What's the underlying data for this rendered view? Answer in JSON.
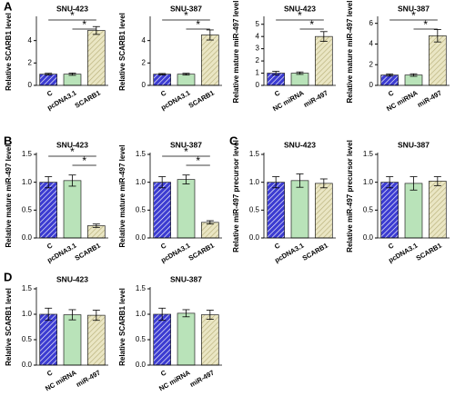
{
  "panel_labels": [
    "A",
    "B",
    "C",
    "D"
  ],
  "chart_data": [
    {
      "type": "bar",
      "title": "SNU-423",
      "y_label": "Relative SCARB1 level",
      "categories": [
        "C",
        "pcDNA3.1",
        "SCARB1"
      ],
      "values": [
        1.0,
        1.0,
        4.9
      ],
      "errors": [
        0.08,
        0.1,
        0.35
      ],
      "colors": [
        "#3b3bd1",
        "#b9e3b9",
        "#eae6c4"
      ],
      "ylim": [
        0,
        6
      ],
      "yticks": [
        0,
        2,
        4
      ],
      "significance": [
        {
          "from": 0,
          "to": 2,
          "label": "*"
        },
        {
          "from": 1,
          "to": 2,
          "label": "*"
        }
      ]
    },
    {
      "type": "bar",
      "title": "SNU-387",
      "y_label": "Relative SCARB1 level",
      "categories": [
        "C",
        "pcDNA3.1",
        "SCARB1"
      ],
      "values": [
        1.0,
        1.0,
        4.5
      ],
      "errors": [
        0.06,
        0.08,
        0.45
      ],
      "colors": [
        "#3b3bd1",
        "#b9e3b9",
        "#eae6c4"
      ],
      "ylim": [
        0,
        6
      ],
      "yticks": [
        0,
        2,
        4
      ],
      "significance": [
        {
          "from": 0,
          "to": 2,
          "label": "*"
        },
        {
          "from": 1,
          "to": 2,
          "label": "*"
        }
      ]
    },
    {
      "type": "bar",
      "title": "SNU-423",
      "y_label": "Relative mature miR-497 level",
      "categories": [
        "C",
        "NC miRNA",
        "miR-497"
      ],
      "values": [
        1.0,
        1.0,
        4.0
      ],
      "errors": [
        0.15,
        0.1,
        0.4
      ],
      "colors": [
        "#3b3bd1",
        "#b9e3b9",
        "#eae6c4"
      ],
      "ylim": [
        0,
        5.5
      ],
      "yticks": [
        0,
        1,
        2,
        3,
        4,
        5
      ],
      "significance": [
        {
          "from": 0,
          "to": 2,
          "label": "*"
        },
        {
          "from": 1,
          "to": 2,
          "label": "*"
        }
      ]
    },
    {
      "type": "bar",
      "title": "SNU-387",
      "y_label": "Relative mature miR-497 level",
      "categories": [
        "C",
        "NC miRNA",
        "miR-497"
      ],
      "values": [
        1.0,
        1.0,
        4.8
      ],
      "errors": [
        0.1,
        0.12,
        0.6
      ],
      "colors": [
        "#3b3bd1",
        "#b9e3b9",
        "#eae6c4"
      ],
      "ylim": [
        0,
        6.5
      ],
      "yticks": [
        0,
        2,
        4,
        6
      ],
      "significance": [
        {
          "from": 0,
          "to": 2,
          "label": "*"
        },
        {
          "from": 1,
          "to": 2,
          "label": "*"
        }
      ]
    },
    {
      "type": "bar",
      "title": "SNU-423",
      "y_label": "Relative mature miR-497 level",
      "categories": [
        "C",
        "pcDNA3.1",
        "SCARB1"
      ],
      "values": [
        1.0,
        1.03,
        0.22
      ],
      "errors": [
        0.1,
        0.1,
        0.03
      ],
      "colors": [
        "#3b3bd1",
        "#b9e3b9",
        "#eae6c4"
      ],
      "ylim": [
        0,
        1.5
      ],
      "yticks": [
        {
          "value": 0,
          "label": "0.0"
        },
        0.5,
        {
          "value": 1,
          "label": "1.0"
        },
        1.5
      ],
      "significance": [
        {
          "from": 0,
          "to": 2,
          "label": "*"
        },
        {
          "from": 1,
          "to": 2,
          "label": "*"
        }
      ]
    },
    {
      "type": "bar",
      "title": "SNU-387",
      "y_label": "Relative mature miR-497 level",
      "categories": [
        "C",
        "pcDNA3.1",
        "SCARB1"
      ],
      "values": [
        1.0,
        1.05,
        0.28
      ],
      "errors": [
        0.1,
        0.08,
        0.03
      ],
      "colors": [
        "#3b3bd1",
        "#b9e3b9",
        "#eae6c4"
      ],
      "ylim": [
        0,
        1.5
      ],
      "yticks": [
        {
          "value": 0,
          "label": "0.0"
        },
        0.5,
        {
          "value": 1,
          "label": "1.0"
        },
        1.5
      ],
      "significance": [
        {
          "from": 0,
          "to": 2,
          "label": "*"
        },
        {
          "from": 1,
          "to": 2,
          "label": "*"
        }
      ]
    },
    {
      "type": "bar",
      "title": "SNU-423",
      "y_label": "Relative miR-497 precursor level",
      "categories": [
        "C",
        "pcDNA3.1",
        "SCARB1"
      ],
      "values": [
        1.0,
        1.03,
        0.98
      ],
      "errors": [
        0.1,
        0.12,
        0.08
      ],
      "colors": [
        "#3b3bd1",
        "#b9e3b9",
        "#eae6c4"
      ],
      "ylim": [
        0,
        1.5
      ],
      "yticks": [
        {
          "value": 0,
          "label": "0.0"
        },
        0.5,
        {
          "value": 1,
          "label": "1.0"
        },
        1.5
      ],
      "significance": []
    },
    {
      "type": "bar",
      "title": "SNU-387",
      "y_label": "Relative miR-497 precursor level",
      "categories": [
        "C",
        "pcDNA3.1",
        "SCARB1"
      ],
      "values": [
        1.0,
        0.98,
        1.02
      ],
      "errors": [
        0.1,
        0.12,
        0.08
      ],
      "colors": [
        "#3b3bd1",
        "#b9e3b9",
        "#eae6c4"
      ],
      "ylim": [
        0,
        1.5
      ],
      "yticks": [
        {
          "value": 0,
          "label": "0.0"
        },
        0.5,
        {
          "value": 1,
          "label": "1.0"
        },
        1.5
      ],
      "significance": []
    },
    {
      "type": "bar",
      "title": "SNU-423",
      "y_label": "Relative SCARB1 level",
      "categories": [
        "C",
        "NC miRNA",
        "miR-497"
      ],
      "values": [
        1.0,
        0.99,
        0.98
      ],
      "errors": [
        0.12,
        0.1,
        0.1
      ],
      "colors": [
        "#3b3bd1",
        "#b9e3b9",
        "#eae6c4"
      ],
      "ylim": [
        0,
        1.5
      ],
      "yticks": [
        {
          "value": 0,
          "label": "0.0"
        },
        0.5,
        {
          "value": 1,
          "label": "1.0"
        },
        1.5
      ],
      "significance": []
    },
    {
      "type": "bar",
      "title": "SNU-387",
      "y_label": "Relative SCARB1 level",
      "categories": [
        "C",
        "NC miRNA",
        "miR-497"
      ],
      "values": [
        1.0,
        1.02,
        0.99
      ],
      "errors": [
        0.12,
        0.07,
        0.09
      ],
      "colors": [
        "#3b3bd1",
        "#b9e3b9",
        "#eae6c4"
      ],
      "ylim": [
        0,
        1.5
      ],
      "yticks": [
        {
          "value": 0,
          "label": "0.0"
        },
        0.5,
        {
          "value": 1,
          "label": "1.0"
        },
        1.5
      ],
      "significance": []
    }
  ]
}
